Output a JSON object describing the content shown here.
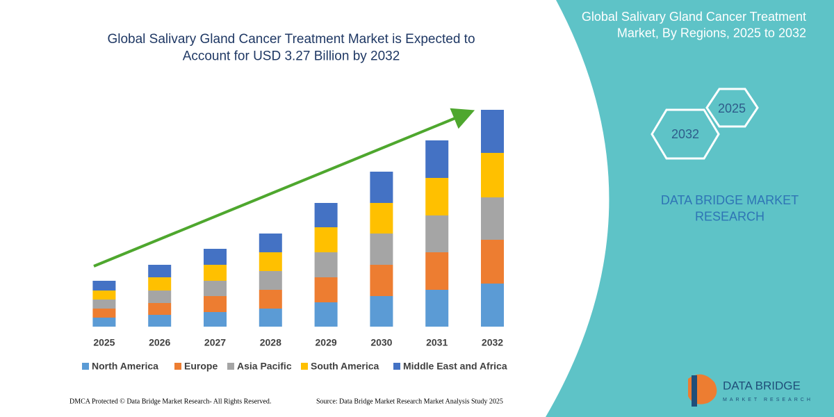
{
  "chart_data": {
    "type": "bar",
    "stacked": true,
    "title": "Global Salivary Gland Cancer Treatment Market is Expected to Account for USD 3.27 Billion by 2032",
    "categories": [
      "2025",
      "2026",
      "2027",
      "2028",
      "2029",
      "2030",
      "2031",
      "2032"
    ],
    "series": [
      {
        "name": "North America",
        "color": "#5b9bd5",
        "values": [
          13,
          17,
          21,
          26,
          35,
          44,
          53,
          62
        ]
      },
      {
        "name": "Europe",
        "color": "#ed7d31",
        "values": [
          13,
          17,
          23,
          27,
          36,
          45,
          54,
          63
        ]
      },
      {
        "name": "Asia Pacific",
        "color": "#a5a5a5",
        "values": [
          13,
          18,
          22,
          27,
          36,
          45,
          53,
          61
        ]
      },
      {
        "name": "South America",
        "color": "#ffc000",
        "values": [
          13,
          19,
          23,
          27,
          36,
          44,
          54,
          64
        ]
      },
      {
        "name": "Middle East and Africa",
        "color": "#4472c4",
        "values": [
          14,
          18,
          23,
          27,
          35,
          45,
          54,
          62
        ]
      }
    ],
    "trend_color": "#4ea72e"
  },
  "panel": {
    "title": "Global Salivary Gland Cancer Treatment Market, By Regions, 2025 to 2032",
    "hexagons": [
      "2025",
      "2032"
    ],
    "brand": "DATA BRIDGE MARKET RESEARCH"
  },
  "logo": {
    "name": "DATA BRIDGE",
    "tagline": "MARKET RESEARCH"
  },
  "footer": {
    "notice": "DMCA Protected © Data Bridge Market Research-  All Rights Reserved.",
    "source": "Source: Data Bridge Market Research  Market Analysis Study 2025"
  }
}
